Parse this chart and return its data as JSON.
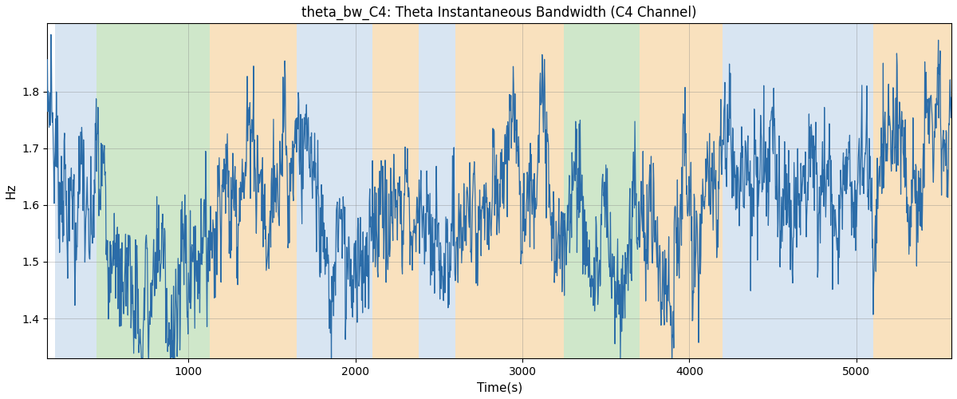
{
  "title": "theta_bw_C4: Theta Instantaneous Bandwidth (C4 Channel)",
  "xlabel": "Time(s)",
  "ylabel": "Hz",
  "xlim": [
    155,
    5570
  ],
  "ylim": [
    1.33,
    1.92
  ],
  "yticks": [
    1.4,
    1.5,
    1.6,
    1.7,
    1.8
  ],
  "xticks": [
    1000,
    2000,
    3000,
    4000,
    5000
  ],
  "line_color": "#2b6ca8",
  "line_width": 0.9,
  "bg_bands": [
    {
      "xmin": 200,
      "xmax": 450,
      "color": "#b8d0e8",
      "alpha": 0.55
    },
    {
      "xmin": 450,
      "xmax": 1130,
      "color": "#a8d4a0",
      "alpha": 0.55
    },
    {
      "xmin": 1130,
      "xmax": 1650,
      "color": "#f5c98a",
      "alpha": 0.55
    },
    {
      "xmin": 1650,
      "xmax": 2100,
      "color": "#b8d0e8",
      "alpha": 0.55
    },
    {
      "xmin": 2100,
      "xmax": 2380,
      "color": "#f5c98a",
      "alpha": 0.55
    },
    {
      "xmin": 2380,
      "xmax": 2600,
      "color": "#b8d0e8",
      "alpha": 0.55
    },
    {
      "xmin": 2600,
      "xmax": 2900,
      "color": "#f5c98a",
      "alpha": 0.55
    },
    {
      "xmin": 2900,
      "xmax": 3250,
      "color": "#f5c98a",
      "alpha": 0.55
    },
    {
      "xmin": 3250,
      "xmax": 3700,
      "color": "#a8d4a0",
      "alpha": 0.55
    },
    {
      "xmin": 3700,
      "xmax": 4200,
      "color": "#f5c98a",
      "alpha": 0.55
    },
    {
      "xmin": 4200,
      "xmax": 5100,
      "color": "#b8d0e8",
      "alpha": 0.55
    },
    {
      "xmin": 5100,
      "xmax": 5570,
      "color": "#f5c98a",
      "alpha": 0.55
    }
  ],
  "title_fontsize": 12,
  "label_fontsize": 11,
  "tick_fontsize": 10,
  "figsize": [
    12,
    5
  ],
  "dpi": 100
}
